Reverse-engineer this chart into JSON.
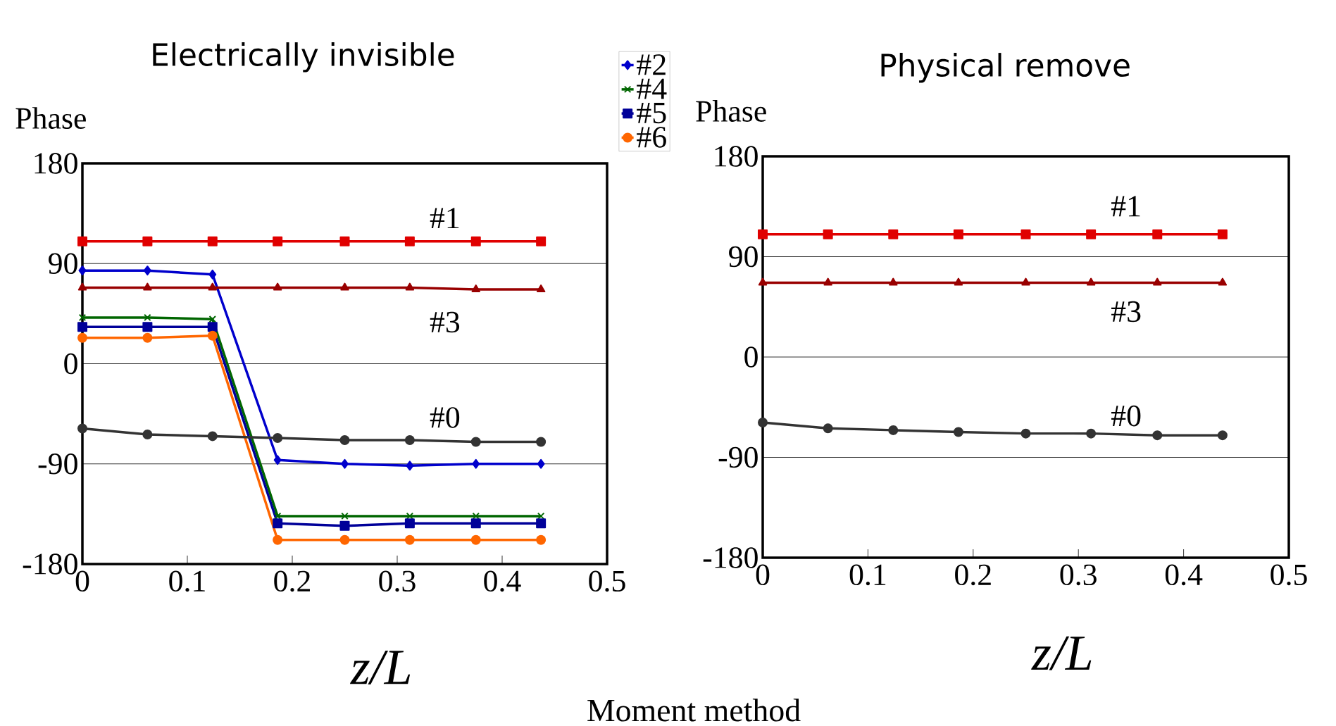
{
  "chart_data": [
    {
      "type": "line",
      "title": "Electrically invisible",
      "xlabel": "z/L",
      "ylabel": "Phase",
      "x": [
        0,
        0.062,
        0.124,
        0.186,
        0.25,
        0.312,
        0.375,
        0.437
      ],
      "xlim": [
        0,
        0.5
      ],
      "ylim": [
        -180,
        180
      ],
      "xticks": [
        0,
        0.1,
        0.2,
        0.3,
        0.4,
        0.5
      ],
      "yticks": [
        -180,
        -90,
        0,
        90,
        180
      ],
      "grid": "y",
      "legend": "top right",
      "series": [
        {
          "name": "#1",
          "color": "#e00000",
          "marker": "square",
          "values": [
            110,
            110,
            110,
            110,
            110,
            110,
            110,
            110
          ]
        },
        {
          "name": "#2",
          "color": "#0000cc",
          "marker": "diamond",
          "values": [
            83.7,
            83.7,
            80.2,
            -86.5,
            -90,
            -91.6,
            -90,
            -90
          ]
        },
        {
          "name": "#3",
          "color": "#990000",
          "marker": "triangle",
          "values": [
            68.3,
            68.3,
            68.3,
            68.3,
            68.3,
            68.3,
            66.7,
            66.7
          ]
        },
        {
          "name": "#4",
          "color": "#006600",
          "marker": "cross",
          "values": [
            41.5,
            41.5,
            40,
            -136.9,
            -136.9,
            -136.9,
            -136.9,
            -136.9
          ]
        },
        {
          "name": "#5",
          "color": "#000099",
          "marker": "square",
          "values": [
            33,
            33,
            33,
            -143.5,
            -145.7,
            -143.5,
            -143.5,
            -143.5
          ]
        },
        {
          "name": "#6",
          "color": "#ff6600",
          "marker": "circle",
          "values": [
            23.3,
            23.3,
            25.2,
            -158.3,
            -158.3,
            -158.3,
            -158.3,
            -158.3
          ]
        },
        {
          "name": "#0",
          "color": "#333333",
          "marker": "circle",
          "values": [
            -58.2,
            -63.6,
            -65.1,
            -66.7,
            -68.6,
            -68.6,
            -70.2,
            -70.2
          ]
        }
      ]
    },
    {
      "type": "line",
      "title": "Physical remove",
      "xlabel": "z/L",
      "ylabel": "Phase",
      "x": [
        0,
        0.062,
        0.124,
        0.186,
        0.25,
        0.312,
        0.375,
        0.437
      ],
      "xlim": [
        0,
        0.5
      ],
      "ylim": [
        -180,
        180
      ],
      "xticks": [
        0,
        0.1,
        0.2,
        0.3,
        0.4,
        0.5
      ],
      "yticks": [
        -180,
        -90,
        0,
        90,
        180
      ],
      "grid": "y",
      "series": [
        {
          "name": "#1",
          "color": "#e00000",
          "marker": "square",
          "values": [
            110,
            110,
            110,
            110,
            110,
            110,
            110,
            110
          ]
        },
        {
          "name": "#3",
          "color": "#990000",
          "marker": "triangle",
          "values": [
            66.6,
            66.6,
            66.6,
            66.6,
            66.6,
            66.6,
            66.6,
            66.6
          ]
        },
        {
          "name": "#0",
          "color": "#333333",
          "marker": "circle",
          "values": [
            -58.7,
            -64,
            -65.6,
            -67.3,
            -68.6,
            -68.6,
            -70.2,
            -70.2
          ]
        }
      ],
      "annotations": [
        "Moment method"
      ]
    }
  ]
}
